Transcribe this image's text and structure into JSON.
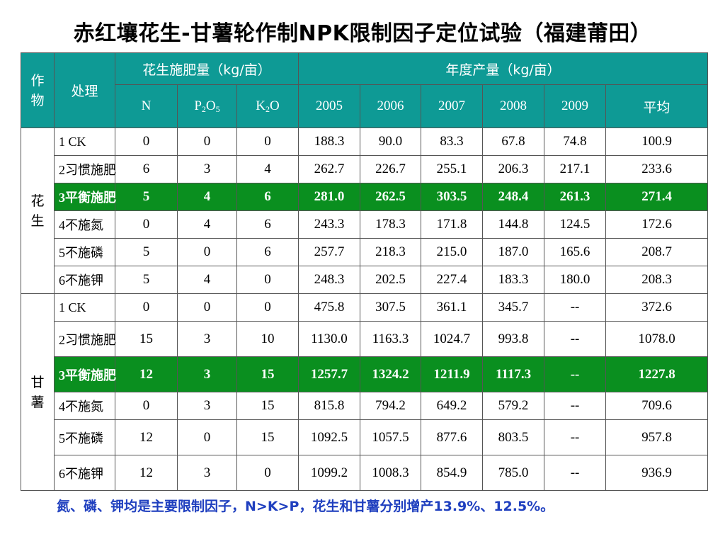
{
  "title": "赤红壤花生-甘薯轮作制NPK限制因子定位试验（福建莆田）",
  "header": {
    "crop": "作物",
    "treatment": "处理",
    "fert_group": "花生施肥量（kg/亩）",
    "yield_group": "年度产量（kg/亩）",
    "n": "N",
    "p2o5": {
      "a": "P",
      "b": "2",
      "c": "O",
      "d": "5"
    },
    "k2o": {
      "a": "K",
      "b": "2",
      "c": "O"
    },
    "years": [
      "2005",
      "2006",
      "2007",
      "2008",
      "2009"
    ],
    "avg": "平均"
  },
  "groups": [
    {
      "crop": "花生",
      "rows": [
        [
          "1 CK",
          "0",
          "0",
          "0",
          "188.3",
          "90.0",
          "83.3",
          "67.8",
          "74.8",
          "100.9"
        ],
        [
          "2习惯施肥",
          "6",
          "3",
          "4",
          "262.7",
          "226.7",
          "255.1",
          "206.3",
          "217.1",
          "233.6"
        ],
        [
          "3平衡施肥",
          "5",
          "4",
          "6",
          "281.0",
          "262.5",
          "303.5",
          "248.4",
          "261.3",
          "271.4"
        ],
        [
          "4不施氮",
          "0",
          "4",
          "6",
          "243.3",
          "178.3",
          "171.8",
          "144.8",
          "124.5",
          "172.6"
        ],
        [
          "5不施磷",
          "5",
          "0",
          "6",
          "257.7",
          "218.3",
          "215.0",
          "187.0",
          "165.6",
          "208.7"
        ],
        [
          "6不施钾",
          "5",
          "4",
          "0",
          "248.3",
          "202.5",
          "227.4",
          "183.3",
          "180.0",
          "208.3"
        ]
      ]
    },
    {
      "crop": "甘薯",
      "rows": [
        [
          "1 CK",
          "0",
          "0",
          "0",
          "475.8",
          "307.5",
          "361.1",
          "345.7",
          "--",
          "372.6"
        ],
        [
          "2习惯施肥",
          "15",
          "3",
          "10",
          "1130.0",
          "1163.3",
          "1024.7",
          "993.8",
          "--",
          "1078.0"
        ],
        [
          "3平衡施肥",
          "12",
          "3",
          "15",
          "1257.7",
          "1324.2",
          "1211.9",
          "1117.3",
          "--",
          "1227.8"
        ],
        [
          "4不施氮",
          "0",
          "3",
          "15",
          "815.8",
          "794.2",
          "649.2",
          "579.2",
          "--",
          "709.6"
        ],
        [
          "5不施磷",
          "12",
          "0",
          "15",
          "1092.5",
          "1057.5",
          "877.6",
          "803.5",
          "--",
          "957.8"
        ],
        [
          "6不施钾",
          "12",
          "3",
          "0",
          "1099.2",
          "1008.3",
          "854.9",
          "785.0",
          "--",
          "936.9"
        ]
      ]
    }
  ],
  "highlight_color": "#0a8f1f",
  "header_color": "#0e9a95",
  "caption": "氮、磷、钾均是主要限制因子，N>K>P，花生和甘薯分别增产13.9%、12.5%。"
}
